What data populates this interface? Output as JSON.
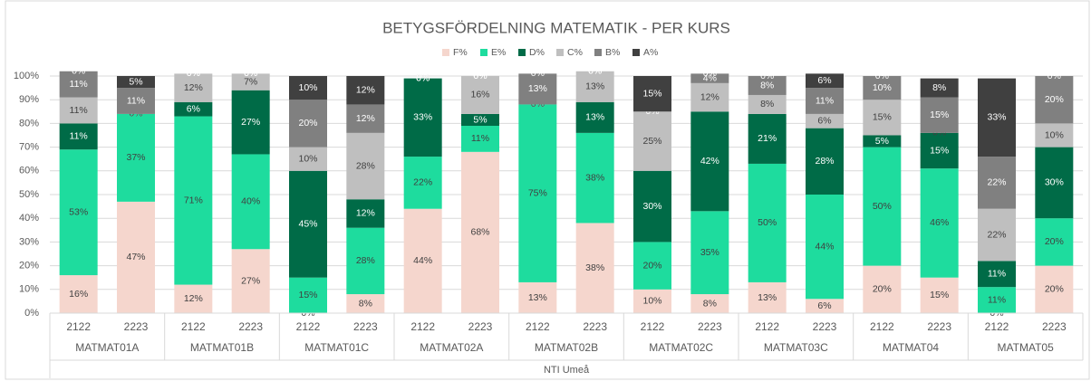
{
  "chart_data": {
    "type": "stacked_bar_100",
    "title": "BETYGSFÖRDELNING MATEMATIK - PER KURS",
    "categories": [
      "2122",
      "2223",
      "2122",
      "2223",
      "2122",
      "2223",
      "2122",
      "2223",
      "2122",
      "2223",
      "2122",
      "2223",
      "2122",
      "2223",
      "2122",
      "2223",
      "2122",
      "2223"
    ],
    "groups": [
      "MATMAT01A",
      "MATMAT01B",
      "MATMAT01C",
      "MATMAT02A",
      "MATMAT02B",
      "MATMAT02C",
      "MATMAT03C",
      "MATMAT04",
      "MATMAT05"
    ],
    "group_title": "NTI Umeå",
    "ylim": [
      0,
      100
    ],
    "yticks": [
      {
        "value": 0,
        "label": "0%"
      },
      {
        "value": 10,
        "label": "10%"
      },
      {
        "value": 20,
        "label": "20%"
      },
      {
        "value": 30,
        "label": "30%"
      },
      {
        "value": 40,
        "label": "40%"
      },
      {
        "value": 50,
        "label": "50%"
      },
      {
        "value": 60,
        "label": "60%"
      },
      {
        "value": 70,
        "label": "70%"
      },
      {
        "value": 80,
        "label": "80%"
      },
      {
        "value": 90,
        "label": "90%"
      },
      {
        "value": 100,
        "label": "100%"
      }
    ],
    "grid": true,
    "legend": "top",
    "series": [
      {
        "name": "F%",
        "color": "#f5d6cd",
        "label_color": "#404040",
        "values": [
          16,
          47,
          12,
          27,
          0,
          8,
          44,
          68,
          13,
          38,
          10,
          8,
          13,
          6,
          20,
          15,
          0,
          20
        ],
        "value_labels": [
          "16%",
          "47%",
          "12%",
          "27%",
          "0%",
          "8%",
          "44%",
          "68%",
          "13%",
          "38%",
          "10%",
          "8%",
          "13%",
          "6%",
          "20%",
          "15%",
          "0%",
          "20%"
        ]
      },
      {
        "name": "E%",
        "color": "#1edc9e",
        "label_color": "#404040",
        "values": [
          53,
          37,
          71,
          40,
          15,
          28,
          22,
          11,
          75,
          38,
          20,
          35,
          50,
          44,
          50,
          46,
          11,
          20
        ],
        "value_labels": [
          "53%",
          "37%",
          "71%",
          "40%",
          "15%",
          "28%",
          "22%",
          "11%",
          "75%",
          "38%",
          "20%",
          "35%",
          "50%",
          "44%",
          "50%",
          "46%",
          "11%",
          "20%"
        ]
      },
      {
        "name": "D%",
        "color": "#006b47",
        "label_color": "#ffffff",
        "values": [
          11,
          0,
          6,
          27,
          45,
          12,
          33,
          5,
          0,
          13,
          30,
          42,
          21,
          28,
          5,
          15,
          11,
          30
        ],
        "value_labels": [
          "11%",
          "0%",
          "6%",
          "27%",
          "45%",
          "12%",
          "33%",
          "5%",
          "0%",
          "13%",
          "30%",
          "42%",
          "21%",
          "28%",
          "5%",
          "15%",
          "11%",
          "30%"
        ]
      },
      {
        "name": "C%",
        "color": "#bfbfbf",
        "label_color": "#404040",
        "values": [
          11,
          0,
          12,
          7,
          10,
          28,
          0,
          16,
          0,
          13,
          25,
          12,
          8,
          6,
          15,
          0,
          22,
          10
        ],
        "value_labels": [
          "11%",
          "0%",
          "12%",
          "7%",
          "10%",
          "28%",
          "0%",
          "16%",
          "0%",
          "13%",
          "25%",
          "12%",
          "8%",
          "6%",
          "15%",
          "0%",
          "22%",
          "10%"
        ]
      },
      {
        "name": "B%",
        "color": "#808080",
        "label_color": "#ffffff",
        "values": [
          11,
          11,
          0,
          0,
          20,
          12,
          0,
          0,
          13,
          0,
          0,
          4,
          8,
          11,
          10,
          15,
          22,
          20
        ],
        "value_labels": [
          "11%",
          "11%",
          "0%",
          "0%",
          "20%",
          "12%",
          "0%",
          "0%",
          "13%",
          "0%",
          "0%",
          "4%",
          "8%",
          "11%",
          "10%",
          "15%",
          "22%",
          "20%"
        ]
      },
      {
        "name": "A%",
        "color": "#404040",
        "label_color": "#ffffff",
        "values": [
          0,
          5,
          0,
          0,
          10,
          12,
          0,
          0,
          0,
          0,
          15,
          0,
          0,
          6,
          0,
          8,
          33,
          0
        ],
        "value_labels": [
          "0%",
          "5%",
          "0%",
          "0%",
          "10%",
          "12%",
          "0%",
          "0%",
          "0%",
          "0%",
          "15%",
          "0%",
          "0%",
          "6%",
          "0%",
          "8%",
          "33%",
          "0%"
        ]
      }
    ]
  }
}
